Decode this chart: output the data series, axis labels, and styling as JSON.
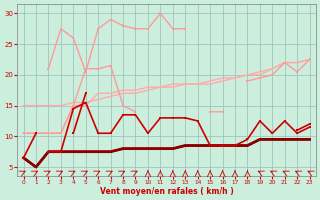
{
  "x": [
    0,
    1,
    2,
    3,
    4,
    5,
    6,
    7,
    8,
    9,
    10,
    11,
    12,
    13,
    14,
    15,
    16,
    17,
    18,
    19,
    20,
    21,
    22,
    23
  ],
  "bg_color": "#cceedd",
  "grid_color": "#99bbbb",
  "xlabel": "Vent moyen/en rafales ( km/h )",
  "ylim": [
    3.5,
    31.5
  ],
  "xlim": [
    -0.5,
    23.5
  ],
  "yticks": [
    5,
    10,
    15,
    20,
    25,
    30
  ],
  "series": [
    {
      "label": "gust_pink_jagged",
      "y": [
        null,
        null,
        21.0,
        27.5,
        26.0,
        20.5,
        27.5,
        29.0,
        28.0,
        27.5,
        27.5,
        30.0,
        27.5,
        27.5,
        null,
        null,
        null,
        null,
        null,
        null,
        null,
        null,
        null,
        null
      ],
      "color": "#ff9999",
      "lw": 1.0,
      "marker": "s",
      "ms": 2.0,
      "zorder": 4
    },
    {
      "label": "upper_diagonal1",
      "y": [
        10.5,
        10.5,
        10.5,
        10.5,
        15.0,
        15.0,
        17.0,
        17.0,
        17.5,
        17.5,
        18.0,
        18.0,
        18.5,
        18.5,
        18.5,
        18.5,
        19.0,
        19.5,
        20.0,
        20.0,
        21.0,
        22.0,
        22.0,
        22.5
      ],
      "color": "#ffaaaa",
      "lw": 1.0,
      "marker": null,
      "ms": 0,
      "zorder": 2
    },
    {
      "label": "upper_diagonal2",
      "y": [
        15.0,
        15.0,
        15.0,
        15.0,
        15.5,
        15.5,
        16.0,
        16.5,
        17.0,
        17.0,
        17.5,
        18.0,
        18.0,
        18.5,
        18.5,
        19.0,
        19.5,
        19.5,
        20.0,
        20.5,
        21.0,
        22.0,
        22.0,
        22.5
      ],
      "color": "#ffaaaa",
      "lw": 1.0,
      "marker": null,
      "ms": 0,
      "zorder": 2
    },
    {
      "label": "pink_wiggly_upper",
      "y": [
        10.5,
        10.5,
        10.5,
        10.5,
        15.0,
        21.0,
        21.0,
        21.5,
        15.0,
        14.0,
        null,
        null,
        null,
        null,
        null,
        14.0,
        14.0,
        null,
        19.0,
        19.5,
        20.0,
        22.0,
        20.5,
        22.5
      ],
      "color": "#ff9999",
      "lw": 1.0,
      "marker": "s",
      "ms": 2.0,
      "zorder": 3
    },
    {
      "label": "red_main_wind",
      "y": [
        6.5,
        10.5,
        null,
        null,
        10.5,
        17.0,
        null,
        null,
        null,
        null,
        null,
        null,
        null,
        13.0,
        null,
        null,
        null,
        null,
        null,
        null,
        null,
        null,
        11.0,
        12.0
      ],
      "color": "#cc0000",
      "lw": 1.2,
      "marker": "s",
      "ms": 2.0,
      "zorder": 6
    },
    {
      "label": "red_main_wind2",
      "y": [
        null,
        null,
        7.5,
        7.5,
        14.5,
        15.5,
        10.5,
        10.5,
        13.5,
        13.5,
        10.5,
        13.0,
        13.0,
        13.0,
        12.5,
        8.5,
        8.5,
        8.5,
        9.5,
        12.5,
        10.5,
        12.5,
        10.5,
        11.5
      ],
      "color": "#cc0000",
      "lw": 1.2,
      "marker": "s",
      "ms": 2.0,
      "zorder": 6
    },
    {
      "label": "darkred_low1",
      "y": [
        6.5,
        5.0,
        7.5,
        7.5,
        7.5,
        7.5,
        7.5,
        7.5,
        8.0,
        8.0,
        8.0,
        8.0,
        8.0,
        8.5,
        8.5,
        8.5,
        8.5,
        8.5,
        8.5,
        9.5,
        9.5,
        9.5,
        9.5,
        9.5
      ],
      "color": "#cc2222",
      "lw": 1.0,
      "marker": "s",
      "ms": 1.5,
      "zorder": 5
    },
    {
      "label": "darkred_low2",
      "y": [
        6.5,
        5.0,
        7.5,
        7.5,
        7.5,
        7.5,
        7.5,
        7.5,
        8.0,
        8.0,
        8.0,
        8.0,
        8.0,
        8.5,
        8.5,
        8.5,
        8.5,
        8.5,
        8.5,
        9.5,
        9.5,
        9.5,
        9.5,
        9.5
      ],
      "color": "#aa0000",
      "lw": 1.5,
      "marker": "s",
      "ms": 1.5,
      "zorder": 5
    },
    {
      "label": "darkred_low3",
      "y": [
        6.5,
        5.0,
        7.5,
        7.5,
        7.5,
        7.5,
        7.5,
        7.5,
        8.0,
        8.0,
        8.0,
        8.0,
        8.0,
        8.5,
        8.5,
        8.5,
        8.5,
        8.5,
        8.5,
        9.5,
        9.5,
        9.5,
        9.5,
        9.5
      ],
      "color": "#880000",
      "lw": 2.0,
      "marker": "s",
      "ms": 2.0,
      "zorder": 5
    }
  ],
  "arrow_angles": [
    45,
    45,
    45,
    45,
    45,
    45,
    45,
    45,
    45,
    45,
    0,
    0,
    0,
    0,
    0,
    0,
    0,
    0,
    0,
    315,
    315,
    315,
    315,
    315
  ]
}
